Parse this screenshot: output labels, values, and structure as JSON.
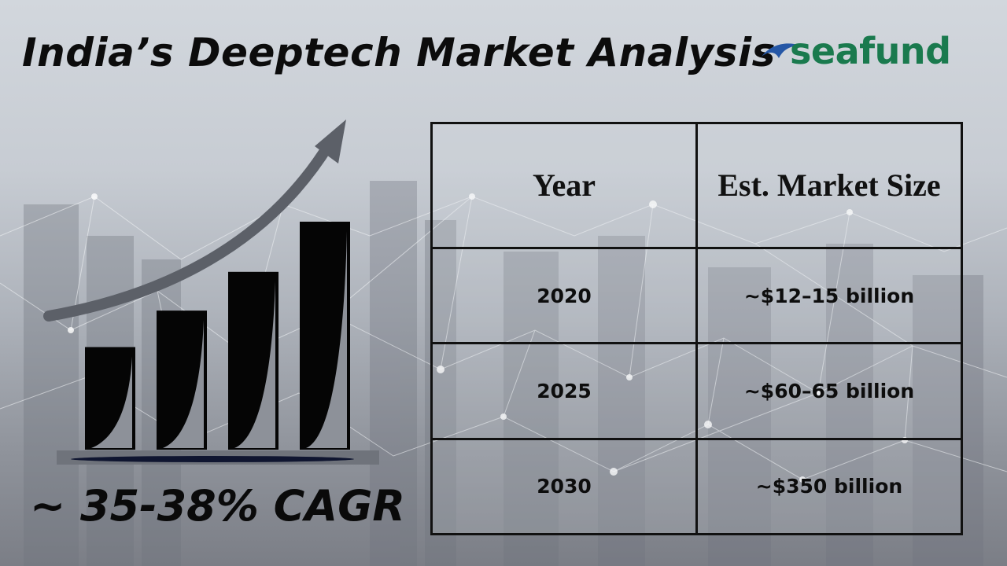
{
  "title": "India’s Deeptech Market Analysis",
  "logo": {
    "text": "seafund",
    "brand_color": "#1a7a4e",
    "icon": "wave-logo-icon"
  },
  "cagr_label": "~ 35-38% CAGR",
  "growth_graphic": {
    "icon": "bar-chart-growth-icon",
    "bar_levels": [
      0.45,
      0.61,
      0.78,
      1.0
    ]
  },
  "table": {
    "headers": {
      "year": "Year",
      "size": "Est. Market Size"
    },
    "rows": [
      {
        "year": "2020",
        "size": "~$12–15 billion"
      },
      {
        "year": "2025",
        "size": "~$60–65 billion"
      },
      {
        "year": "2030",
        "size": "~$350 billion"
      }
    ]
  }
}
